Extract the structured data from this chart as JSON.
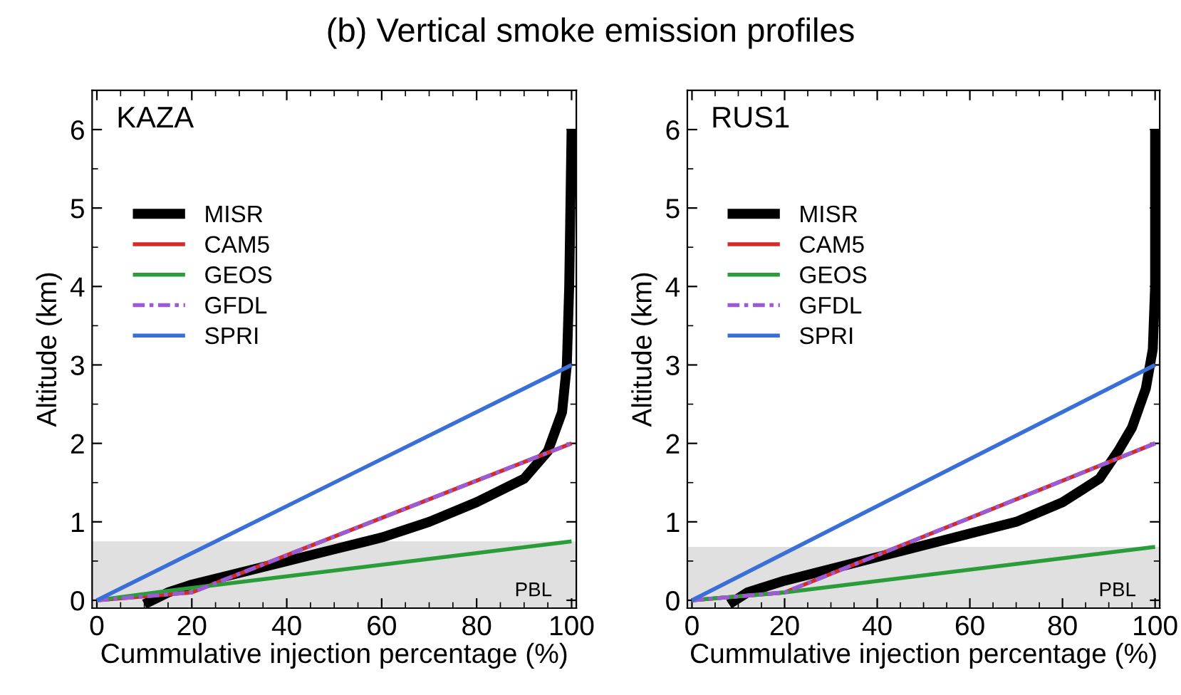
{
  "chart_data": [
    {
      "type": "line",
      "title": "(b) Vertical smoke emission profiles",
      "subtitle": "KAZA",
      "xlabel": "Cummulative injection percentage (%)",
      "ylabel": "Altitude (km)",
      "xlim": [
        -1,
        101
      ],
      "ylim": [
        -0.1,
        6.5
      ],
      "xticks": [
        0,
        20,
        40,
        60,
        80,
        100
      ],
      "yticks": [
        0,
        1,
        2,
        3,
        4,
        5,
        6
      ],
      "grid": false,
      "legend": "top left",
      "series": [
        {
          "name": "MISR",
          "color": "#000000",
          "line_style": "solid",
          "x": [
            10,
            15,
            20,
            30,
            40,
            50,
            60,
            70,
            80,
            90,
            95,
            98,
            99,
            99.5,
            100
          ],
          "values": [
            -0.05,
            0.1,
            0.2,
            0.35,
            0.5,
            0.65,
            0.8,
            1.0,
            1.25,
            1.55,
            1.9,
            2.4,
            3.0,
            4.0,
            6.0
          ]
        },
        {
          "name": "CAM5",
          "color": "#d42a2a",
          "line_style": "solid",
          "x": [
            0,
            20,
            100
          ],
          "values": [
            0,
            0.1,
            2
          ]
        },
        {
          "name": "GEOS",
          "color": "#2a9d3a",
          "line_style": "solid",
          "x": [
            0,
            15,
            100
          ],
          "values": [
            0,
            0.12,
            0.75
          ]
        },
        {
          "name": "GFDL",
          "color": "#9b5ad6",
          "line_style": "dashdot",
          "x": [
            0,
            20,
            100
          ],
          "values": [
            0,
            0.1,
            2
          ]
        },
        {
          "name": "SPRI",
          "color": "#3a6fd8",
          "line_style": "solid",
          "x": [
            0,
            100
          ],
          "values": [
            0,
            3
          ]
        }
      ],
      "bands": [
        {
          "axis": "y",
          "from": -0.1,
          "to": 0.75,
          "label": "PBL",
          "color": "#e0e0e0"
        }
      ]
    },
    {
      "type": "line",
      "subtitle": "RUS1",
      "xlabel": "Cummulative injection percentage (%)",
      "ylabel": "Altitude (km)",
      "xlim": [
        -1,
        101
      ],
      "ylim": [
        -0.1,
        6.5
      ],
      "xticks": [
        0,
        20,
        40,
        60,
        80,
        100
      ],
      "yticks": [
        0,
        1,
        2,
        3,
        4,
        5,
        6
      ],
      "grid": false,
      "legend": "top left",
      "series": [
        {
          "name": "MISR",
          "color": "#000000",
          "line_style": "solid",
          "x": [
            8,
            12,
            20,
            30,
            40,
            50,
            60,
            70,
            80,
            88,
            92,
            95,
            98,
            99.5,
            100,
            100
          ],
          "values": [
            -0.05,
            0.1,
            0.25,
            0.4,
            0.55,
            0.7,
            0.85,
            1.0,
            1.25,
            1.55,
            1.9,
            2.2,
            2.7,
            3.2,
            4.0,
            6.0
          ]
        },
        {
          "name": "CAM5",
          "color": "#d42a2a",
          "line_style": "solid",
          "x": [
            0,
            20,
            100
          ],
          "values": [
            0,
            0.1,
            2
          ]
        },
        {
          "name": "GEOS",
          "color": "#2a9d3a",
          "line_style": "solid",
          "x": [
            0,
            20,
            100
          ],
          "values": [
            0,
            0.1,
            0.68
          ]
        },
        {
          "name": "GFDL",
          "color": "#9b5ad6",
          "line_style": "dashdot",
          "x": [
            0,
            20,
            100
          ],
          "values": [
            0,
            0.1,
            2
          ]
        },
        {
          "name": "SPRI",
          "color": "#3a6fd8",
          "line_style": "solid",
          "x": [
            0,
            100
          ],
          "values": [
            0,
            3
          ]
        }
      ],
      "bands": [
        {
          "axis": "y",
          "from": -0.1,
          "to": 0.68,
          "label": "PBL",
          "color": "#e0e0e0"
        }
      ]
    }
  ]
}
